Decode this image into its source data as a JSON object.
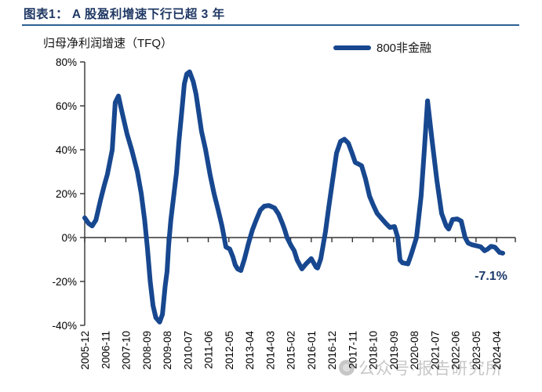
{
  "header": {
    "title": "图表1： A 股盈利增速下行已超 3 年"
  },
  "watermark": {
    "text": "公众号·报告研究所"
  },
  "chart_data": {
    "type": "line",
    "title": "归母净利润增速（TFQ）",
    "legend_entries": [
      {
        "label": "800非金融",
        "color": "#17478f"
      }
    ],
    "annotation": {
      "text": "-7.1%",
      "color": "#1b3a6b"
    },
    "axis_color": "#333333",
    "grid": false,
    "ylim": [
      -40,
      80
    ],
    "yticks": [
      80,
      60,
      40,
      20,
      0,
      -20,
      -40
    ],
    "ytick_suffix": "%",
    "xlim_months": [
      0,
      230
    ],
    "xtick_interval_months": 11,
    "xtick_labels": [
      "2005-12",
      "2006-11",
      "2007-10",
      "2008-09",
      "2009-08",
      "2010-07",
      "2011-06",
      "2012-05",
      "2013-04",
      "2014-03",
      "2015-02",
      "2016-01",
      "2016-12",
      "2017-11",
      "2018-10",
      "2019-09",
      "2020-08",
      "2021-07",
      "2022-06",
      "2023-05",
      "2024-04"
    ],
    "series": [
      {
        "name": "800非金融",
        "color": "#17478f",
        "x_unit": "months_since_2005-12",
        "points": [
          [
            0,
            9
          ],
          [
            2,
            6.5
          ],
          [
            4,
            5.3
          ],
          [
            6,
            8
          ],
          [
            8.4,
            17
          ],
          [
            10.5,
            24
          ],
          [
            12.1,
            28.8
          ],
          [
            14.7,
            40
          ],
          [
            16.3,
            61.5
          ],
          [
            18,
            64.5
          ],
          [
            19.7,
            58
          ],
          [
            21.4,
            51.6
          ],
          [
            22.6,
            47.3
          ],
          [
            25.1,
            40
          ],
          [
            28.1,
            30
          ],
          [
            30.2,
            20
          ],
          [
            32,
            8
          ],
          [
            33.5,
            -5
          ],
          [
            35,
            -20
          ],
          [
            36.5,
            -31
          ],
          [
            38,
            -36.5
          ],
          [
            40,
            -38.5
          ],
          [
            41.5,
            -35
          ],
          [
            43,
            -22
          ],
          [
            44,
            -15.5
          ],
          [
            44.8,
            -4
          ],
          [
            46,
            8
          ],
          [
            49,
            29.5
          ],
          [
            50.3,
            43.8
          ],
          [
            51.9,
            58
          ],
          [
            53.2,
            70
          ],
          [
            54.5,
            74.5
          ],
          [
            56,
            75.5
          ],
          [
            58,
            71
          ],
          [
            59.5,
            65.2
          ],
          [
            62.4,
            48.4
          ],
          [
            64.5,
            40.2
          ],
          [
            67,
            28.5
          ],
          [
            69.1,
            20
          ],
          [
            71.2,
            12.8
          ],
          [
            73.3,
            5.3
          ],
          [
            74.5,
            0
          ],
          [
            75.4,
            -4.3
          ],
          [
            77.5,
            -5.3
          ],
          [
            79.2,
            -8.9
          ],
          [
            80.4,
            -12.5
          ],
          [
            81.7,
            -14.3
          ],
          [
            83.4,
            -15
          ],
          [
            85.4,
            -9.6
          ],
          [
            87.5,
            -2.5
          ],
          [
            89.6,
            3.6
          ],
          [
            91.7,
            8.2
          ],
          [
            93.8,
            12.5
          ],
          [
            95.9,
            14.3
          ],
          [
            98.4,
            14.6
          ],
          [
            101.4,
            13.5
          ],
          [
            103.5,
            10.7
          ],
          [
            105.6,
            6.4
          ],
          [
            106.8,
            3.6
          ],
          [
            108.1,
            0
          ],
          [
            110.2,
            -3.6
          ],
          [
            111.9,
            -6
          ],
          [
            113.5,
            -10.3
          ],
          [
            116,
            -14.3
          ],
          [
            118.1,
            -12.1
          ],
          [
            121,
            -9.6
          ],
          [
            123.6,
            -13.5
          ],
          [
            124.4,
            -13.9
          ],
          [
            126.1,
            -9.6
          ],
          [
            127.3,
            -3.6
          ],
          [
            128.6,
            2.8
          ],
          [
            130.3,
            13.5
          ],
          [
            132.4,
            26
          ],
          [
            134.5,
            38.4
          ],
          [
            136.6,
            43.8
          ],
          [
            138.7,
            44.8
          ],
          [
            140.8,
            43
          ],
          [
            142.8,
            38.4
          ],
          [
            144.5,
            34.2
          ],
          [
            146.2,
            33.5
          ],
          [
            147.9,
            32.7
          ],
          [
            150,
            26.7
          ],
          [
            152.1,
            18.9
          ],
          [
            154.2,
            14.6
          ],
          [
            156.2,
            11
          ],
          [
            158.3,
            8.9
          ],
          [
            160.9,
            6.4
          ],
          [
            163,
            4.6
          ],
          [
            165.5,
            5
          ],
          [
            167.2,
            0
          ],
          [
            168.4,
            -10.3
          ],
          [
            169.7,
            -11.5
          ],
          [
            172.6,
            -12
          ],
          [
            174.3,
            -8
          ],
          [
            177.2,
            0
          ],
          [
            179.7,
            19
          ],
          [
            181.4,
            40
          ],
          [
            183.1,
            62.3
          ],
          [
            185.6,
            43.8
          ],
          [
            188.1,
            26
          ],
          [
            190.6,
            11
          ],
          [
            193.1,
            5.3
          ],
          [
            194.4,
            3.9
          ],
          [
            196.5,
            8.2
          ],
          [
            199,
            8.5
          ],
          [
            201.1,
            7.5
          ],
          [
            203.2,
            0
          ],
          [
            204.8,
            -2.5
          ],
          [
            206.9,
            -3.3
          ],
          [
            209.4,
            -3.8
          ],
          [
            211.5,
            -4.2
          ],
          [
            213.6,
            -6
          ],
          [
            215.3,
            -5.2
          ],
          [
            217,
            -4
          ],
          [
            219.1,
            -4.4
          ],
          [
            221.6,
            -6.8
          ],
          [
            223.3,
            -7.1
          ]
        ]
      }
    ]
  }
}
